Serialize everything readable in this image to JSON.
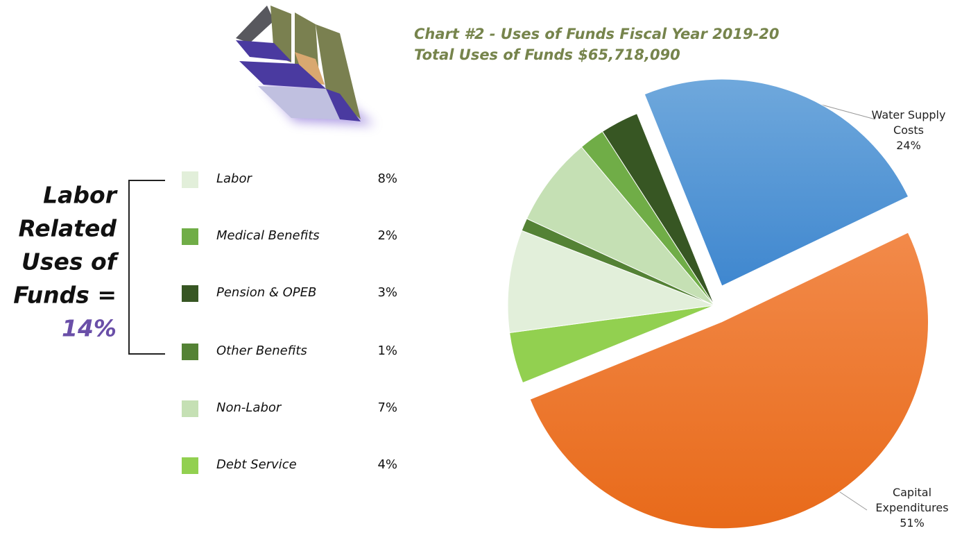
{
  "chart_data": {
    "type": "pie",
    "title": "Chart #2 - Uses of Funds Fiscal Year 2019-20",
    "subtitle": "Total Uses of Funds $65,718,090",
    "categories": [
      "Water Supply Costs",
      "Capital Expenditures",
      "Labor",
      "Medical Benefits",
      "Pension & OPEB",
      "Other Benefits",
      "Non-Labor",
      "Debt Service"
    ],
    "values": [
      24,
      51,
      8,
      2,
      3,
      1,
      7,
      4
    ],
    "value_labels": [
      "24%",
      "51%",
      "8%",
      "2%",
      "3%",
      "1%",
      "7%",
      "4%"
    ],
    "colors": [
      "#5b9bd5",
      "#f07c28",
      "#e2efda",
      "#70ad47",
      "#375623",
      "#548235",
      "#c5e0b4",
      "#92d050"
    ],
    "annotation_lines": [
      "Labor",
      "Related",
      "Uses of",
      "Funds =",
      "14%"
    ]
  }
}
